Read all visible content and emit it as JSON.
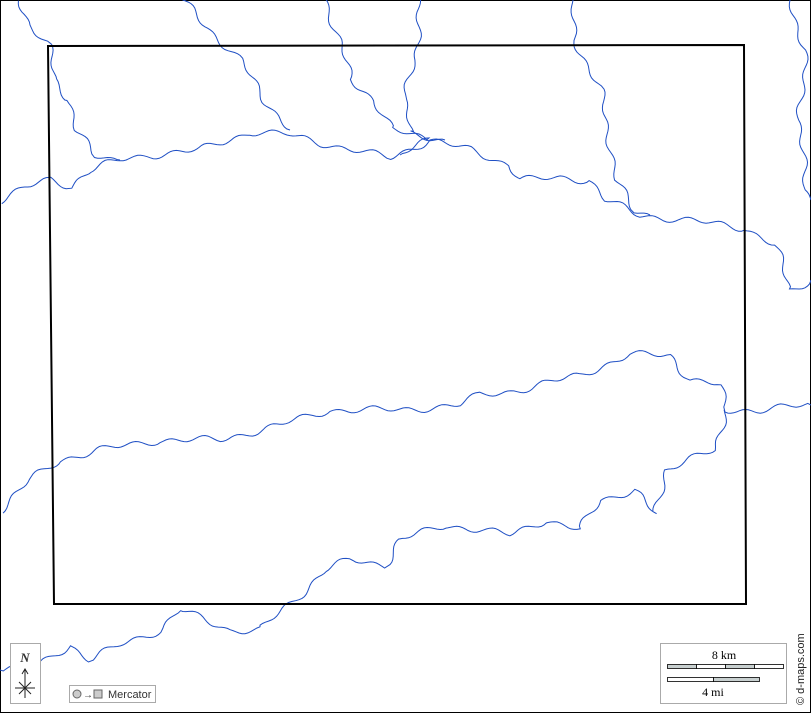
{
  "map": {
    "north_label": "N",
    "projection_label": "Mercator",
    "scale_km_label": "8 km",
    "scale_mi_label": "4 mi",
    "credit": "© d-maps.com",
    "colors": {
      "river": "#1f4fc4",
      "frame": "#000000",
      "legend_border": "#999999",
      "scale_fill": "#c8d0d0"
    },
    "icons": [
      "compass-rose-icon",
      "projection-icon"
    ]
  }
}
